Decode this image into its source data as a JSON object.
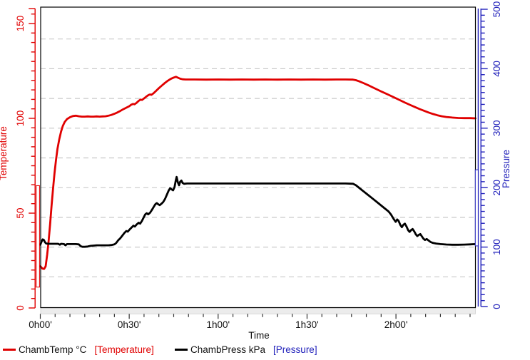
{
  "chart_data": {
    "type": "line",
    "title": "",
    "xlabel": "Time",
    "x_axis": {
      "title": "Time",
      "tick_labels": [
        "0h00'",
        "0h30'",
        "1h00'",
        "1h30'",
        "2h00'"
      ],
      "tick_minutes": [
        0,
        30,
        60,
        90,
        120
      ],
      "minor_step_min": 5,
      "end_min": 146.8
    },
    "left_axis": {
      "title": "Temperature",
      "color": "#e00000",
      "tick_values": [
        0,
        50,
        100,
        150
      ],
      "tick_labels": [
        "0",
        "50",
        "100",
        "150"
      ],
      "minor_step": 5,
      "minor_max": 155,
      "slider_range": [
        11,
        64.5
      ]
    },
    "right_axis": {
      "title": "Pressure",
      "color": "#2222bb",
      "tick_values": [
        0,
        100,
        200,
        300,
        400,
        500
      ],
      "tick_labels": [
        "0",
        "100",
        "200",
        "300",
        "400",
        "500"
      ],
      "minor_step": 10,
      "slider_range": [
        102,
        230
      ]
    },
    "grid": {
      "dashed": true,
      "color": "#c9c9c9",
      "right_axis_step": 50
    },
    "series": [
      {
        "name": "ChambTemp °C",
        "axis": "left",
        "color": "#e00000",
        "points": [
          [
            0,
            22
          ],
          [
            0.7,
            20.8
          ],
          [
            1.3,
            20.6
          ],
          [
            1.8,
            22
          ],
          [
            2.3,
            28
          ],
          [
            2.8,
            35
          ],
          [
            3.3,
            44
          ],
          [
            3.8,
            54
          ],
          [
            4.3,
            63
          ],
          [
            4.8,
            71
          ],
          [
            5.3,
            78
          ],
          [
            5.8,
            84
          ],
          [
            6.4,
            89
          ],
          [
            7,
            93
          ],
          [
            7.6,
            96
          ],
          [
            8.2,
            98
          ],
          [
            9,
            99.6
          ],
          [
            10,
            100.6
          ],
          [
            11,
            101.2
          ],
          [
            12,
            101.4
          ],
          [
            13,
            101.1
          ],
          [
            14,
            100.9
          ],
          [
            15,
            100.9
          ],
          [
            16,
            101
          ],
          [
            17,
            100.9
          ],
          [
            18,
            100.9
          ],
          [
            19,
            101
          ],
          [
            20,
            100.9
          ],
          [
            21,
            101
          ],
          [
            22,
            101.1
          ],
          [
            23,
            101.4
          ],
          [
            24,
            101.8
          ],
          [
            25,
            102.4
          ],
          [
            26,
            103.1
          ],
          [
            27,
            103.9
          ],
          [
            28,
            104.8
          ],
          [
            29,
            105.6
          ],
          [
            30,
            106.4
          ],
          [
            30.7,
            107.2
          ],
          [
            31.3,
            107.6
          ],
          [
            31.8,
            107.4
          ],
          [
            32.5,
            108.2
          ],
          [
            33.2,
            109.2
          ],
          [
            33.8,
            109.9
          ],
          [
            34.3,
            109.7
          ],
          [
            35,
            110.5
          ],
          [
            35.8,
            111.5
          ],
          [
            36.5,
            112.3
          ],
          [
            37,
            112.6
          ],
          [
            37.5,
            112.4
          ],
          [
            38.2,
            113.2
          ],
          [
            39,
            114.4
          ],
          [
            40,
            115.9
          ],
          [
            41,
            117.3
          ],
          [
            42,
            118.6
          ],
          [
            43,
            119.8
          ],
          [
            44,
            120.8
          ],
          [
            45,
            121.5
          ],
          [
            45.8,
            121.9
          ],
          [
            46.5,
            121.4
          ],
          [
            47.2,
            120.9
          ],
          [
            48,
            120.6
          ],
          [
            49,
            120.5
          ],
          [
            52,
            120.5
          ],
          [
            56,
            120.4
          ],
          [
            60,
            120.5
          ],
          [
            64,
            120.4
          ],
          [
            68,
            120.5
          ],
          [
            72,
            120.4
          ],
          [
            76,
            120.5
          ],
          [
            80,
            120.4
          ],
          [
            84,
            120.5
          ],
          [
            88,
            120.4
          ],
          [
            92,
            120.5
          ],
          [
            96,
            120.4
          ],
          [
            100,
            120.5
          ],
          [
            103,
            120.5
          ],
          [
            105.5,
            120.4
          ],
          [
            106.5,
            120.1
          ],
          [
            107.5,
            119.6
          ],
          [
            109,
            118.6
          ],
          [
            111,
            117.2
          ],
          [
            113,
            115.7
          ],
          [
            115,
            114.2
          ],
          [
            117,
            112.8
          ],
          [
            119,
            111.3
          ],
          [
            121,
            109.8
          ],
          [
            123,
            108.3
          ],
          [
            125,
            106.9
          ],
          [
            126.5,
            105.9
          ],
          [
            128,
            104.9
          ],
          [
            129.5,
            104
          ],
          [
            131,
            103.1
          ],
          [
            132.5,
            102.3
          ],
          [
            134,
            101.6
          ],
          [
            135.5,
            101.1
          ],
          [
            137,
            100.7
          ],
          [
            139,
            100.4
          ],
          [
            141,
            100.2
          ],
          [
            143,
            100.1
          ],
          [
            145,
            100.1
          ],
          [
            146.8,
            100
          ]
        ]
      },
      {
        "name": "ChambPress kPa",
        "axis": "right",
        "color": "#000000",
        "points": [
          [
            0,
            104
          ],
          [
            0.4,
            109
          ],
          [
            0.8,
            113
          ],
          [
            1.2,
            112
          ],
          [
            1.6,
            108
          ],
          [
            2,
            106
          ],
          [
            3,
            105.5
          ],
          [
            4,
            105.5
          ],
          [
            5,
            105.5
          ],
          [
            6,
            105.5
          ],
          [
            6.6,
            104
          ],
          [
            7,
            105.5
          ],
          [
            8,
            105
          ],
          [
            8.5,
            103
          ],
          [
            9,
            105
          ],
          [
            10,
            105
          ],
          [
            11,
            105
          ],
          [
            12,
            105
          ],
          [
            13,
            104.5
          ],
          [
            13.6,
            101.5
          ],
          [
            14.2,
            100.5
          ],
          [
            15,
            100.5
          ],
          [
            16,
            101
          ],
          [
            17,
            102
          ],
          [
            18,
            102.5
          ],
          [
            19,
            103
          ],
          [
            20,
            103
          ],
          [
            21,
            103
          ],
          [
            22,
            103
          ],
          [
            23,
            103
          ],
          [
            24,
            103.5
          ],
          [
            25,
            104.5
          ],
          [
            25.6,
            107
          ],
          [
            26.2,
            111
          ],
          [
            27,
            115
          ],
          [
            27.8,
            120
          ],
          [
            28.4,
            124
          ],
          [
            29,
            127
          ],
          [
            29.5,
            126
          ],
          [
            30.2,
            130
          ],
          [
            30.8,
            133
          ],
          [
            31.4,
            136
          ],
          [
            31.9,
            134.5
          ],
          [
            32.5,
            138
          ],
          [
            33.2,
            141
          ],
          [
            33.7,
            139.5
          ],
          [
            34.3,
            144
          ],
          [
            34.9,
            150
          ],
          [
            35.4,
            155
          ],
          [
            35.9,
            157
          ],
          [
            36.4,
            155
          ],
          [
            37,
            157.5
          ],
          [
            37.6,
            162
          ],
          [
            38.2,
            167
          ],
          [
            38.8,
            172
          ],
          [
            39.3,
            174
          ],
          [
            39.8,
            172
          ],
          [
            40.3,
            170.5
          ],
          [
            40.9,
            173
          ],
          [
            41.5,
            176
          ],
          [
            42.1,
            181
          ],
          [
            42.7,
            188
          ],
          [
            43.3,
            195
          ],
          [
            43.8,
            199
          ],
          [
            44.3,
            197
          ],
          [
            44.8,
            195.5
          ],
          [
            45.3,
            201
          ],
          [
            45.7,
            212
          ],
          [
            46,
            218
          ],
          [
            46.4,
            209
          ],
          [
            46.8,
            204
          ],
          [
            47.2,
            210
          ],
          [
            47.6,
            212
          ],
          [
            48,
            208
          ],
          [
            48.5,
            206.5
          ],
          [
            49.5,
            207
          ],
          [
            52,
            207
          ],
          [
            56,
            207
          ],
          [
            60,
            207
          ],
          [
            64,
            207
          ],
          [
            68,
            207
          ],
          [
            72,
            207
          ],
          [
            76,
            207
          ],
          [
            80,
            207
          ],
          [
            84,
            207
          ],
          [
            88,
            207
          ],
          [
            92,
            207
          ],
          [
            96,
            207
          ],
          [
            100,
            207
          ],
          [
            103,
            207
          ],
          [
            105.5,
            206.5
          ],
          [
            106.5,
            204
          ],
          [
            108,
            198
          ],
          [
            110,
            190
          ],
          [
            112,
            182
          ],
          [
            114,
            174
          ],
          [
            116,
            166
          ],
          [
            117.5,
            160
          ],
          [
            118.3,
            155
          ],
          [
            118.9,
            150
          ],
          [
            119.4,
            146
          ],
          [
            119.9,
            142.5
          ],
          [
            120.4,
            146.5
          ],
          [
            120.9,
            144
          ],
          [
            121.5,
            137
          ],
          [
            122,
            133.5
          ],
          [
            122.5,
            137.5
          ],
          [
            123,
            139.5
          ],
          [
            123.6,
            134
          ],
          [
            124.1,
            128.5
          ],
          [
            124.6,
            125.5
          ],
          [
            125.1,
            128.5
          ],
          [
            125.6,
            130.5
          ],
          [
            126.2,
            126
          ],
          [
            126.7,
            121.5
          ],
          [
            127.2,
            118.5
          ],
          [
            127.7,
            120.5
          ],
          [
            128.2,
            122
          ],
          [
            128.8,
            117.5
          ],
          [
            129.3,
            114
          ],
          [
            129.8,
            112
          ],
          [
            130.4,
            113.5
          ],
          [
            131,
            111
          ],
          [
            131.7,
            108.5
          ],
          [
            132.5,
            107
          ],
          [
            133.5,
            106
          ],
          [
            135,
            105
          ],
          [
            137,
            104.3
          ],
          [
            139,
            104
          ],
          [
            141,
            104
          ],
          [
            143,
            104.2
          ],
          [
            145,
            104.6
          ],
          [
            146.8,
            105
          ]
        ]
      }
    ],
    "legend_position": "bottom"
  },
  "legend": {
    "items": [
      {
        "name": "ChambTemp °C",
        "bracket": "[Temperature]",
        "swatch_color": "#e00000",
        "bracket_color": "#e00000"
      },
      {
        "name": "ChambPress kPa",
        "bracket": "[Pressure]",
        "swatch_color": "#000000",
        "bracket_color": "#2222bb"
      }
    ]
  }
}
